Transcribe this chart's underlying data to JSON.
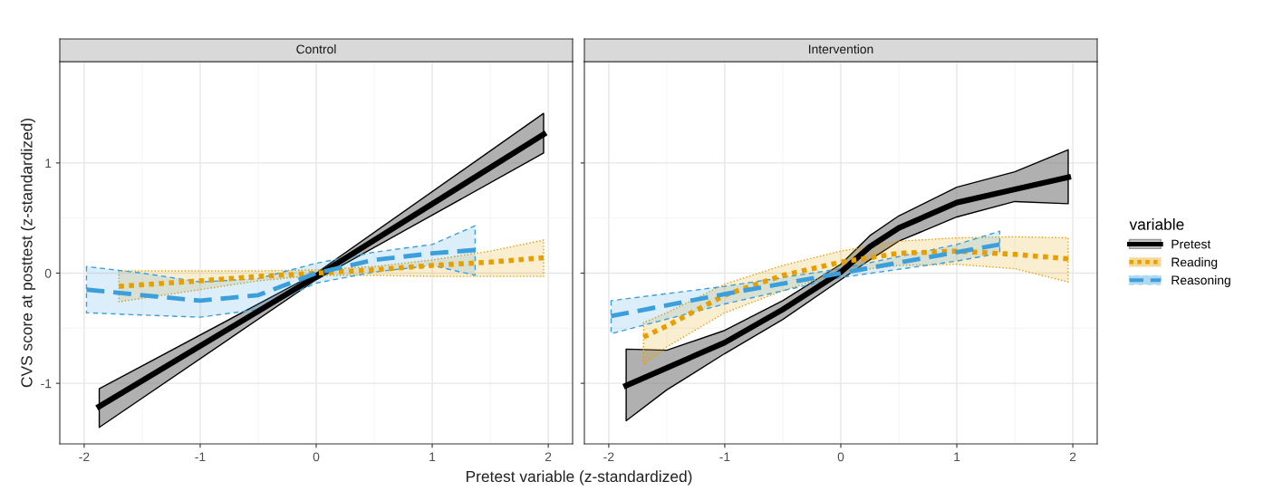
{
  "chart_data": [
    {
      "type": "line",
      "title": "Control",
      "xlabel": "Pretest variable (z-standardized)",
      "ylabel": "CVS score at posttest (z-standardized)",
      "xlim": [
        -2.21,
        2.21
      ],
      "ylim": [
        -1.55,
        1.92
      ],
      "xticks": [
        -2,
        -1,
        0,
        1,
        2
      ],
      "yticks": [
        -1,
        0,
        1
      ],
      "grid": true,
      "legend": "right",
      "legend_title": "variable",
      "series": [
        {
          "name": "Pretest",
          "color": "#000000",
          "line_style": "solid",
          "x": [
            -1.87,
            0,
            1.96
          ],
          "values": [
            -1.21,
            -0.03,
            1.26
          ],
          "lower": [
            -1.4,
            -0.06,
            1.09
          ],
          "upper": [
            -1.05,
            0.0,
            1.45
          ]
        },
        {
          "name": "Reading",
          "color": "#e69f00",
          "line_style": "dotted",
          "x": [
            -1.7,
            -1,
            -0.5,
            0,
            0.5,
            1,
            1.5,
            1.96
          ],
          "values": [
            -0.12,
            -0.07,
            -0.03,
            0,
            0.03,
            0.07,
            0.1,
            0.14
          ],
          "lower": [
            -0.26,
            -0.15,
            -0.07,
            -0.02,
            -0.02,
            -0.03,
            -0.03,
            -0.03
          ],
          "upper": [
            0.02,
            0.02,
            0.02,
            0.03,
            0.06,
            0.12,
            0.2,
            0.3
          ]
        },
        {
          "name": "Reasoning",
          "color": "#3b9fdc",
          "line_style": "dashed",
          "x": [
            -1.98,
            -1.5,
            -1,
            -0.5,
            0,
            0.5,
            1,
            1.37
          ],
          "values": [
            -0.15,
            -0.2,
            -0.25,
            -0.2,
            0,
            0.12,
            0.18,
            0.21
          ],
          "lower": [
            -0.36,
            -0.38,
            -0.4,
            -0.33,
            -0.09,
            0.01,
            0.07,
            -0.02
          ],
          "upper": [
            0.06,
            0.0,
            -0.08,
            -0.05,
            0.09,
            0.19,
            0.26,
            0.43
          ]
        }
      ]
    },
    {
      "type": "line",
      "title": "Intervention",
      "xlim": [
        -2.21,
        2.21
      ],
      "ylim": [
        -1.55,
        1.92
      ],
      "xticks": [
        -2,
        -1,
        0,
        1,
        2
      ],
      "yticks": [
        -1,
        0,
        1
      ],
      "grid": true,
      "tick_labels": "x",
      "series": [
        {
          "color": "#000000",
          "line_style": "solid",
          "x": [
            -1.85,
            -1.5,
            -1,
            -0.5,
            0,
            0.25,
            0.5,
            1,
            1.5,
            1.96
          ],
          "values": [
            -1.02,
            -0.86,
            -0.63,
            -0.33,
            0.01,
            0.24,
            0.41,
            0.64,
            0.76,
            0.87
          ],
          "lower": [
            -1.34,
            -1.06,
            -0.73,
            -0.42,
            -0.06,
            0.12,
            0.29,
            0.51,
            0.65,
            0.63
          ],
          "upper": [
            -0.69,
            -0.7,
            -0.52,
            -0.25,
            0.08,
            0.34,
            0.52,
            0.78,
            0.92,
            1.12
          ]
        },
        {
          "color": "#e69f00",
          "line_style": "dotted",
          "x": [
            -1.7,
            -1.5,
            -1,
            -0.5,
            0,
            0.5,
            1,
            1.5,
            1.96
          ],
          "values": [
            -0.58,
            -0.48,
            -0.2,
            -0.02,
            0.1,
            0.18,
            0.2,
            0.17,
            0.13
          ],
          "lower": [
            -0.83,
            -0.67,
            -0.36,
            -0.16,
            0.01,
            0.07,
            0.08,
            0.04,
            -0.08
          ],
          "upper": [
            -0.45,
            -0.36,
            -0.1,
            0.07,
            0.2,
            0.29,
            0.32,
            0.33,
            0.32
          ]
        },
        {
          "color": "#3b9fdc",
          "line_style": "dashed",
          "x": [
            -1.98,
            -1,
            0,
            1,
            1.37
          ],
          "values": [
            -0.39,
            -0.19,
            0,
            0.19,
            0.26
          ],
          "lower": [
            -0.55,
            -0.28,
            -0.04,
            0.11,
            0.18
          ],
          "upper": [
            -0.25,
            -0.12,
            0.04,
            0.26,
            0.38
          ]
        }
      ]
    }
  ]
}
